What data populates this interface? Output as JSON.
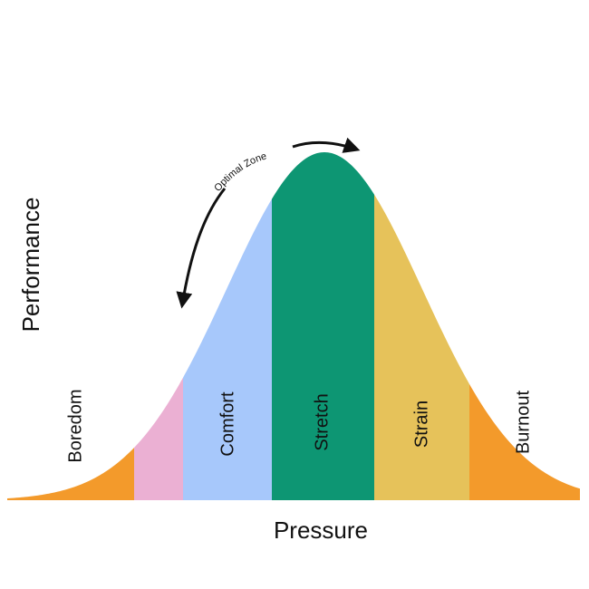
{
  "axes": {
    "y_label": "Performance",
    "x_label": "Pressure"
  },
  "zones": [
    {
      "id": "boredom",
      "label": "Boredom",
      "color": "#F39A2B"
    },
    {
      "id": "pink",
      "label": "",
      "color": "#EBB0D3"
    },
    {
      "id": "comfort",
      "label": "Comfort",
      "color": "#A7C8FB"
    },
    {
      "id": "stretch",
      "label": "Stretch",
      "color": "#0D9673"
    },
    {
      "id": "strain",
      "label": "Strain",
      "color": "#E6C25A"
    },
    {
      "id": "burnout",
      "label": "Burnout",
      "color": "#F39A2B"
    }
  ],
  "annotation": {
    "label": "Optimal Zone"
  }
}
